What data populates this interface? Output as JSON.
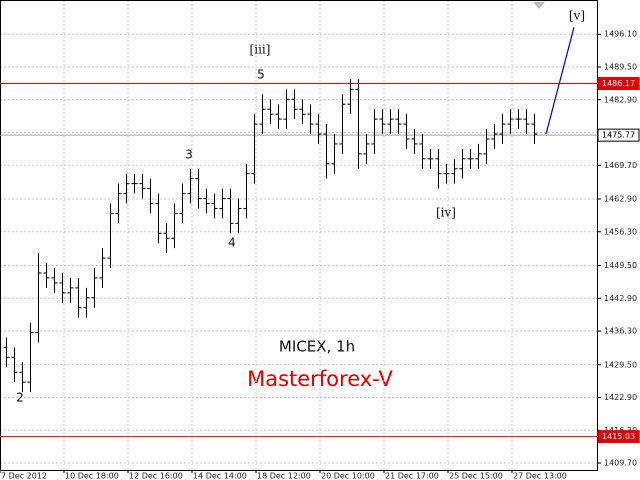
{
  "chart_data": {
    "type": "ohlc",
    "title": "MICEX, 1h",
    "subtitle": "Masterforex-V",
    "color": "#000000",
    "grid": true,
    "categories": [
      "7 Dec 2012",
      null,
      null,
      null,
      null,
      null,
      null,
      null,
      "10 Dec 18:00",
      null,
      null,
      null,
      null,
      null,
      null,
      null,
      "12 Dec 16:00",
      null,
      null,
      null,
      null,
      null,
      null,
      null,
      "14 Dec 14:00",
      null,
      null,
      null,
      null,
      null,
      null,
      null,
      "18 Dec 12:00",
      null,
      null,
      null,
      null,
      null,
      null,
      null,
      "20 Dec 10:00",
      null,
      null,
      null,
      null,
      null,
      null,
      null,
      "21 Dec 17:00",
      null,
      null,
      null,
      null,
      null,
      null,
      null,
      "25 Dec 15:00",
      null,
      null,
      null,
      null,
      null,
      null,
      null,
      "27 Dec 13:00",
      null,
      null
    ],
    "open": [
      1433,
      1431,
      1428,
      1426,
      1436,
      1448,
      1447,
      1446,
      1444,
      1445,
      1441,
      1443,
      1447,
      1451,
      1460,
      1464,
      1466,
      1466,
      1465,
      1462,
      1456,
      1455,
      1460,
      1464,
      1467,
      1463,
      1462,
      1461,
      1463,
      1458,
      1461,
      1468,
      1478,
      1481,
      1480,
      1479,
      1483,
      1481,
      1480,
      1478,
      1476,
      1470,
      1474,
      1482,
      1485,
      1472,
      1474,
      1479,
      1478,
      1479,
      1478,
      1475,
      1474,
      1471,
      1471,
      1468,
      1468,
      1469,
      1471,
      1471,
      1472,
      1475,
      1476,
      1478,
      1479,
      1479,
      1478
    ],
    "high": [
      1435,
      1433,
      1430,
      1438,
      1452,
      1450,
      1449,
      1448,
      1447,
      1447,
      1445,
      1449,
      1453,
      1462,
      1466,
      1468,
      1468,
      1468,
      1467,
      1464,
      1458,
      1462,
      1466,
      1469,
      1469,
      1465,
      1464,
      1465,
      1465,
      1463,
      1470,
      1480,
      1484,
      1483,
      1482,
      1485,
      1485,
      1483,
      1482,
      1480,
      1478,
      1476,
      1484,
      1487,
      1487,
      1476,
      1481,
      1481,
      1481,
      1481,
      1480,
      1477,
      1476,
      1473,
      1473,
      1470,
      1471,
      1473,
      1473,
      1474,
      1477,
      1478,
      1480,
      1481,
      1481,
      1481,
      1480
    ],
    "low": [
      1429,
      1426,
      1424,
      1424,
      1434,
      1445,
      1444,
      1442,
      1442,
      1439,
      1439,
      1441,
      1445,
      1449,
      1458,
      1462,
      1464,
      1463,
      1460,
      1454,
      1452,
      1453,
      1458,
      1462,
      1461,
      1460,
      1459,
      1459,
      1456,
      1456,
      1459,
      1466,
      1476,
      1478,
      1477,
      1477,
      1479,
      1478,
      1476,
      1474,
      1467,
      1468,
      1472,
      1480,
      1469,
      1470,
      1472,
      1476,
      1476,
      1476,
      1473,
      1472,
      1469,
      1469,
      1465,
      1466,
      1466,
      1467,
      1469,
      1469,
      1470,
      1473,
      1474,
      1476,
      1477,
      1476,
      1474
    ],
    "close": [
      1431,
      1428,
      1426,
      1436,
      1448,
      1447,
      1446,
      1444,
      1445,
      1441,
      1443,
      1447,
      1451,
      1460,
      1464,
      1466,
      1466,
      1465,
      1462,
      1456,
      1455,
      1460,
      1464,
      1467,
      1463,
      1462,
      1461,
      1463,
      1458,
      1461,
      1468,
      1478,
      1481,
      1480,
      1479,
      1483,
      1481,
      1480,
      1478,
      1476,
      1470,
      1474,
      1482,
      1485,
      1472,
      1474,
      1479,
      1478,
      1479,
      1478,
      1475,
      1474,
      1471,
      1471,
      1468,
      1468,
      1469,
      1471,
      1471,
      1472,
      1475,
      1476,
      1478,
      1479,
      1479,
      1478,
      1476
    ],
    "ylim": [
      1408.3,
      1503.0
    ],
    "yticks": [
      {
        "value": 1496.1,
        "label": "1496.10"
      },
      {
        "value": 1489.5,
        "label": "1489.50"
      },
      {
        "value": 1482.9,
        "label": "1482.90"
      },
      {
        "value": 1476.3,
        "label": "1476.30"
      },
      {
        "value": 1469.7,
        "label": "1469.70"
      },
      {
        "value": 1462.9,
        "label": "1462.90"
      },
      {
        "value": 1456.3,
        "label": "1456.30"
      },
      {
        "value": 1449.5,
        "label": "1449.50"
      },
      {
        "value": 1442.9,
        "label": "1442.90"
      },
      {
        "value": 1436.3,
        "label": "1436.30"
      },
      {
        "value": 1429.5,
        "label": "1429.50"
      },
      {
        "value": 1422.9,
        "label": "1422.90"
      },
      {
        "value": 1416.3,
        "label": "1416.30"
      },
      {
        "value": 1409.7,
        "label": "1409.70"
      }
    ],
    "price_lines": [
      {
        "value": 1486.17,
        "color": "#e00000"
      },
      {
        "value": 1475.77,
        "color": "#a0a0a0"
      },
      {
        "value": 1415.03,
        "color": "#e00000"
      }
    ],
    "forecast": {
      "color": "#0000cc",
      "values": [
        1476,
        1497.5
      ]
    },
    "annotations": [
      "2",
      "3",
      "4",
      "5",
      "[iii]",
      "[iv]",
      "[v]"
    ]
  }
}
